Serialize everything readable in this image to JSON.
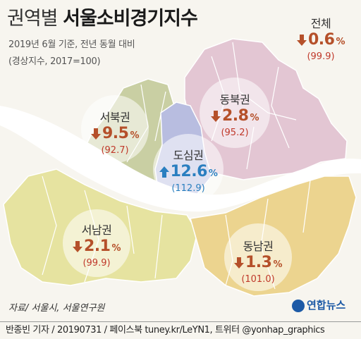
{
  "title": {
    "prefix": "권역별",
    "main": "서울소비경기지수"
  },
  "subtitle_1": "2019년 6월 기준,  전년 동월 대비",
  "subtitle_2": "(경상지수, 2017=100)",
  "regions": {
    "total": {
      "name": "전체",
      "direction": "down",
      "change": "0.6",
      "unit": "%",
      "index": "(99.9)"
    },
    "northwest": {
      "name": "서북권",
      "direction": "down",
      "change": "9.5",
      "unit": "%",
      "index": "(92.7)"
    },
    "northeast": {
      "name": "동북권",
      "direction": "down",
      "change": "2.8",
      "unit": "%",
      "index": "(95.2)"
    },
    "central": {
      "name": "도심권",
      "direction": "up",
      "change": "12.6",
      "unit": "%",
      "index": "(112.9)"
    },
    "southwest": {
      "name": "서남권",
      "direction": "down",
      "change": "2.1",
      "unit": "%",
      "index": "(99.9)"
    },
    "southeast": {
      "name": "동남권",
      "direction": "down",
      "change": "1.3",
      "unit": "%",
      "index": "(101.0)"
    }
  },
  "source": "자료/ 서울시, 서울연구원",
  "logo": "연합뉴스",
  "footer": "반종빈 기자 / 20190731 / 페이스북 tuney.kr/LeYN1, 트위터 @yonhap_graphics",
  "colors": {
    "northwest": "#c9cfa3",
    "northeast": "#e3c6d3",
    "central": "#b8bde0",
    "southwest": "#e6e3a0",
    "southeast": "#ecd48f",
    "river": "#ffffff",
    "down_arrow": "#b5502a",
    "up_arrow": "#2a7fc0"
  }
}
